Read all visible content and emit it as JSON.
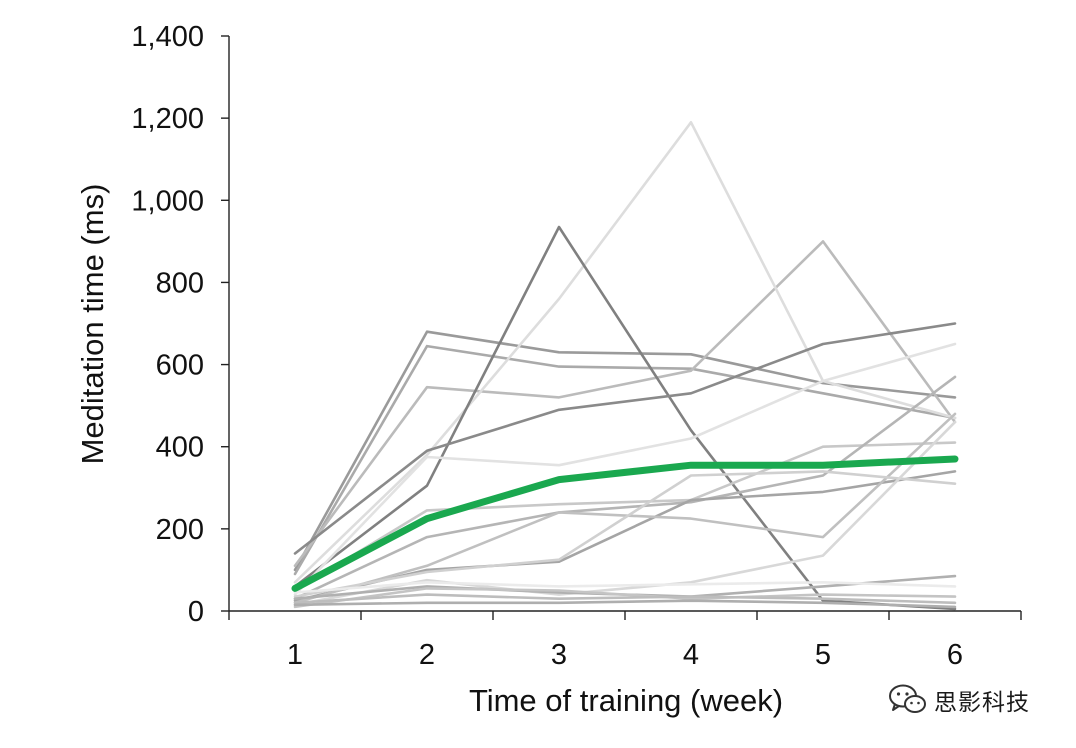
{
  "chart_data": {
    "type": "line",
    "title": "",
    "xlabel": "Time of training (week)",
    "ylabel": "Meditation time (ms)",
    "x": [
      1,
      2,
      3,
      4,
      5,
      6
    ],
    "x_tick_labels": [
      "1",
      "2",
      "3",
      "4",
      "5",
      "6"
    ],
    "xlim": [
      0.5,
      6.5
    ],
    "ylim": [
      0,
      1400
    ],
    "y_ticks": [
      0,
      200,
      400,
      600,
      800,
      1000,
      1200,
      1400
    ],
    "y_tick_labels": [
      "0",
      "200",
      "400",
      "600",
      "800",
      "1,000",
      "1,200",
      "1,400"
    ],
    "grid": false,
    "legend": "none",
    "highlight_color": "#1aa84f",
    "individual_series": [
      {
        "color": "#9a9a9a",
        "values": [
          100,
          680,
          630,
          625,
          555,
          520
        ]
      },
      {
        "color": "#aaaaaa",
        "values": [
          90,
          645,
          595,
          590,
          530,
          470
        ]
      },
      {
        "color": "#bbbbbb",
        "values": [
          110,
          545,
          520,
          585,
          900,
          460
        ]
      },
      {
        "color": "#dddddd",
        "values": [
          70,
          380,
          760,
          1190,
          560,
          470
        ]
      },
      {
        "color": "#808080",
        "values": [
          60,
          305,
          935,
          440,
          25,
          5
        ]
      },
      {
        "color": "#8a8a8a",
        "values": [
          140,
          390,
          490,
          530,
          650,
          700
        ]
      },
      {
        "color": "#e2e2e2",
        "values": [
          40,
          375,
          355,
          420,
          560,
          650
        ]
      },
      {
        "color": "#c8c8c8",
        "values": [
          50,
          245,
          260,
          270,
          400,
          410
        ]
      },
      {
        "color": "#b5b5b5",
        "values": [
          30,
          180,
          240,
          265,
          330,
          570
        ]
      },
      {
        "color": "#a5a5a5",
        "values": [
          25,
          100,
          120,
          270,
          290,
          340
        ]
      },
      {
        "color": "#c0c0c0",
        "values": [
          20,
          110,
          240,
          225,
          180,
          480
        ]
      },
      {
        "color": "#d0d0d0",
        "values": [
          35,
          95,
          125,
          330,
          340,
          310
        ]
      },
      {
        "color": "#d8d8d8",
        "values": [
          15,
          75,
          40,
          70,
          135,
          460
        ]
      },
      {
        "color": "#b0b0b0",
        "values": [
          30,
          60,
          45,
          35,
          60,
          85
        ]
      },
      {
        "color": "#c4c4c4",
        "values": [
          10,
          55,
          50,
          30,
          40,
          35
        ]
      },
      {
        "color": "#bdbdbd",
        "values": [
          20,
          40,
          30,
          35,
          30,
          20
        ]
      },
      {
        "color": "#aeaeae",
        "values": [
          15,
          20,
          20,
          25,
          20,
          10
        ]
      },
      {
        "color": "#ebebeb",
        "values": [
          45,
          70,
          60,
          65,
          70,
          60
        ]
      }
    ],
    "series": [
      {
        "color": "#1aa84f",
        "values": [
          55,
          225,
          320,
          355,
          355,
          370
        ]
      }
    ]
  },
  "watermark": {
    "icon": "wechat-icon",
    "text": "思影科技"
  }
}
